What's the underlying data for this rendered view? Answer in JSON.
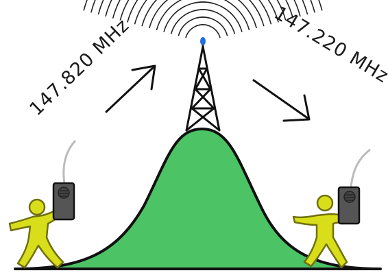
{
  "diagram": {
    "left_frequency": "147.820 MHz",
    "right_frequency": "147.220 MHz",
    "colors": {
      "hill_fill": "#4cc466",
      "outline": "#111111",
      "person_fill": "#d9de1a",
      "person_outline": "#707010",
      "radio_fill": "#555555",
      "antenna_tip": "#1f6fe0",
      "antenna_wire": "#bbbbbb",
      "wave_stroke": "#222222"
    },
    "icons": [
      "tower-icon",
      "handheld-radio-icon",
      "person-icon",
      "arrow-icon"
    ]
  }
}
